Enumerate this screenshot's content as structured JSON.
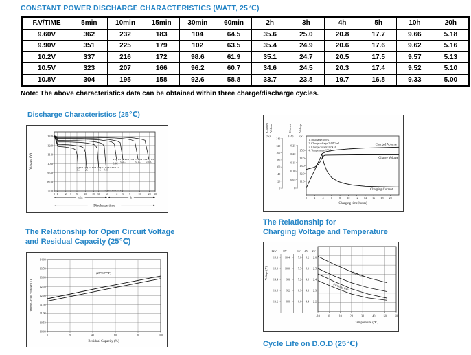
{
  "page": {
    "title": "CONSTANT POWER DISCHARGE CHARACTERISTICS (WATT, 25℃)",
    "note": "Note: The above characteristics data can be obtained within three charge/discharge cycles.",
    "accent_color": "#2585c6"
  },
  "table": {
    "headers": [
      "F.V/TIME",
      "5min",
      "10min",
      "15min",
      "30min",
      "60min",
      "2h",
      "3h",
      "4h",
      "5h",
      "10h",
      "20h"
    ],
    "rows": [
      [
        "9.60V",
        "362",
        "232",
        "183",
        "104",
        "64.5",
        "35.6",
        "25.0",
        "20.8",
        "17.7",
        "9.66",
        "5.18"
      ],
      [
        "9.90V",
        "351",
        "225",
        "179",
        "102",
        "63.5",
        "35.4",
        "24.9",
        "20.6",
        "17.6",
        "9.62",
        "5.16"
      ],
      [
        "10.2V",
        "337",
        "216",
        "172",
        "98.6",
        "61.9",
        "35.1",
        "24.7",
        "20.5",
        "17.5",
        "9.57",
        "5.13"
      ],
      [
        "10.5V",
        "323",
        "207",
        "166",
        "96.2",
        "60.7",
        "34.6",
        "24.5",
        "20.3",
        "17.4",
        "9.52",
        "5.10"
      ],
      [
        "10.8V",
        "304",
        "195",
        "158",
        "92.6",
        "58.8",
        "33.7",
        "23.8",
        "19.7",
        "16.8",
        "9.33",
        "5.00"
      ]
    ]
  },
  "sections": {
    "discharge_title": "Discharge Characteristics (25℃)",
    "ocv_title_line1": "The Relationship for Open Circuit Voltage",
    "ocv_title_line2": "and Residual Capacity (25℃)",
    "ct_title_line1": "The Relationship for",
    "ct_title_line2": "Charging Voltage and Temperature",
    "cycle_life_title": "Cycle Life on D.O.D (25℃)"
  },
  "chart_data": [
    {
      "id": "discharge",
      "type": "line",
      "title": "Discharge Characteristics (25℃)",
      "xlabel": "Discharge time",
      "x_units": [
        "min",
        "h"
      ],
      "ylabel": "Voltage (V)",
      "ylim": [
        7.0,
        13.5
      ],
      "grid": true,
      "yticks": [
        "13.0",
        "12.0",
        "11.0",
        "10.0",
        "9.00",
        "8.00",
        "7.00"
      ],
      "xticks_min": [
        "0",
        "1",
        "2",
        "3",
        "5",
        "10",
        "20",
        "30",
        "60"
      ],
      "xticks_h": [
        "2",
        "3",
        "5",
        "10",
        "20",
        "30"
      ],
      "cutoff_voltages": [
        9.6,
        10.45
      ],
      "series": [
        {
          "label": "3C",
          "end_min": 5.5,
          "v_start": 11.95,
          "v_cut": 9.6
        },
        {
          "label": "2C",
          "end_min": 11,
          "v_start": 12.15,
          "v_cut": 9.6
        },
        {
          "label": "1C",
          "end_min": 30,
          "v_start": 12.4,
          "v_cut": 9.6
        },
        {
          "label": "0.6C",
          "end_min": 55,
          "v_start": 12.55,
          "v_cut": 9.6
        },
        {
          "label": "0.3C",
          "end_min": 120,
          "v_start": 12.7,
          "v_cut": 10.2
        },
        {
          "label": "0.2C",
          "end_min": 185,
          "v_start": 12.78,
          "v_cut": 10.4
        },
        {
          "label": "0.1C",
          "end_min": 540,
          "v_start": 12.88,
          "v_cut": 10.45
        },
        {
          "label": "0.05C",
          "end_min": 1150,
          "v_start": 12.95,
          "v_cut": 10.5
        }
      ]
    },
    {
      "id": "charge",
      "type": "line",
      "xlabel": "Charging time(hours)",
      "xticks": [
        "0",
        "2",
        "4",
        "6",
        "8",
        "10",
        "12",
        "14",
        "16",
        "18",
        "20"
      ],
      "axes": [
        {
          "name": "Charged",
          "name2": "Volume",
          "unit": "(%)",
          "ticks": [
            "140",
            "120",
            "100",
            "80",
            "60",
            "40",
            "20",
            "0"
          ]
        },
        {
          "name": "Current",
          "unit": "(CA)",
          "ticks": [
            "0.25",
            "0.20",
            "0.15",
            "0.10",
            "0.05",
            "0"
          ]
        },
        {
          "name": "Voltage",
          "unit": "(V)",
          "ticks": [
            "15.0",
            "14.0",
            "13.0",
            "12.0",
            "11.0"
          ]
        }
      ],
      "conditions": [
        "1. Discharge:100%",
        "2. Charge voltage:2.40V/cell",
        "3. Charge current:0.25CA",
        "4. Temperature:25℃"
      ],
      "series": [
        {
          "name": "Charged Volume",
          "x": [
            0,
            1,
            2,
            3,
            3.8,
            5,
            7,
            10,
            14,
            18,
            22
          ],
          "pct": [
            0,
            26,
            51,
            77,
            98,
            104,
            108,
            111,
            113.5,
            115,
            116
          ]
        },
        {
          "name": "Charge Voltage",
          "x": [
            0,
            1,
            2,
            3,
            3.5,
            4,
            4.4,
            5,
            8,
            12,
            22
          ],
          "v": [
            12.55,
            12.68,
            12.85,
            13.25,
            13.75,
            14.25,
            14.38,
            14.4,
            14.42,
            14.44,
            14.45
          ]
        },
        {
          "name": "Charging Current",
          "x": [
            0,
            3.7,
            4.2,
            5,
            6,
            7.5,
            9,
            11,
            14,
            18,
            22
          ],
          "ca": [
            0.2,
            0.2,
            0.145,
            0.095,
            0.063,
            0.04,
            0.028,
            0.018,
            0.011,
            0.008,
            0.007
          ]
        }
      ]
    },
    {
      "id": "ocv",
      "type": "line",
      "title": "The Relationship for Open Circuit Voltage and Residual Capacity (25℃)",
      "xlabel": "Residual Capacity (%)",
      "ylabel": "Open Circuit Voltage (V)",
      "annotation": "(25℃/77℉)",
      "grid": true,
      "yticks": [
        "14.00",
        "13.50",
        "13.00",
        "12.50",
        "12.00",
        "11.50",
        "11.00",
        "10.50",
        "10.00"
      ],
      "xticks": [
        "0",
        "20",
        "40",
        "60",
        "80",
        "100"
      ],
      "series": [
        {
          "name": "upper",
          "x": [
            0,
            50,
            100
          ],
          "v": [
            11.83,
            12.48,
            13.08
          ]
        },
        {
          "name": "lower",
          "x": [
            0,
            50,
            100
          ],
          "v": [
            11.69,
            12.33,
            12.94
          ]
        }
      ]
    },
    {
      "id": "temp",
      "type": "line",
      "title": "The Relationship for Charging Voltage and Temperature",
      "xlabel": "Temperature (℃)",
      "ylabel": "Voltage (V)",
      "grid": true,
      "scale_headers": [
        "12V",
        "8V",
        "6V",
        "4V",
        "2V"
      ],
      "scales": [
        [
          "15.6",
          "15.0",
          "14.4",
          "13.8",
          "13.2"
        ],
        [
          "10.4",
          "10.0",
          "9.6",
          "9.2",
          "8.8"
        ],
        [
          "7.8",
          "7.5",
          "7.2",
          "6.9",
          "6.6"
        ],
        [
          "5.2",
          "5.0",
          "4.8",
          "4.6",
          "4.4"
        ],
        [
          "2.6",
          "2.5",
          "2.4",
          "2.3",
          "2.2"
        ]
      ],
      "xticks": [
        "-10",
        "0",
        "10",
        "20",
        "30",
        "40",
        "50",
        "60"
      ],
      "curve_labels": [
        "Cycle Use",
        "Floating Use"
      ],
      "curves": [
        {
          "group": "Cycle Use",
          "x": [
            -10,
            5,
            20,
            35,
            52
          ],
          "v2": [
            2.61,
            2.535,
            2.47,
            2.415,
            2.37
          ]
        },
        {
          "group": "Cycle Use",
          "x": [
            -10,
            5,
            20,
            35,
            52
          ],
          "v2": [
            2.5,
            2.43,
            2.37,
            2.325,
            2.29
          ]
        },
        {
          "group": "Floating Use",
          "x": [
            -10,
            5,
            20,
            35,
            52
          ],
          "v2": [
            2.45,
            2.38,
            2.315,
            2.268,
            2.23
          ]
        },
        {
          "group": "Floating Use",
          "x": [
            -10,
            5,
            20,
            35,
            52
          ],
          "v2": [
            2.39,
            2.325,
            2.268,
            2.232,
            2.21
          ]
        }
      ]
    }
  ]
}
